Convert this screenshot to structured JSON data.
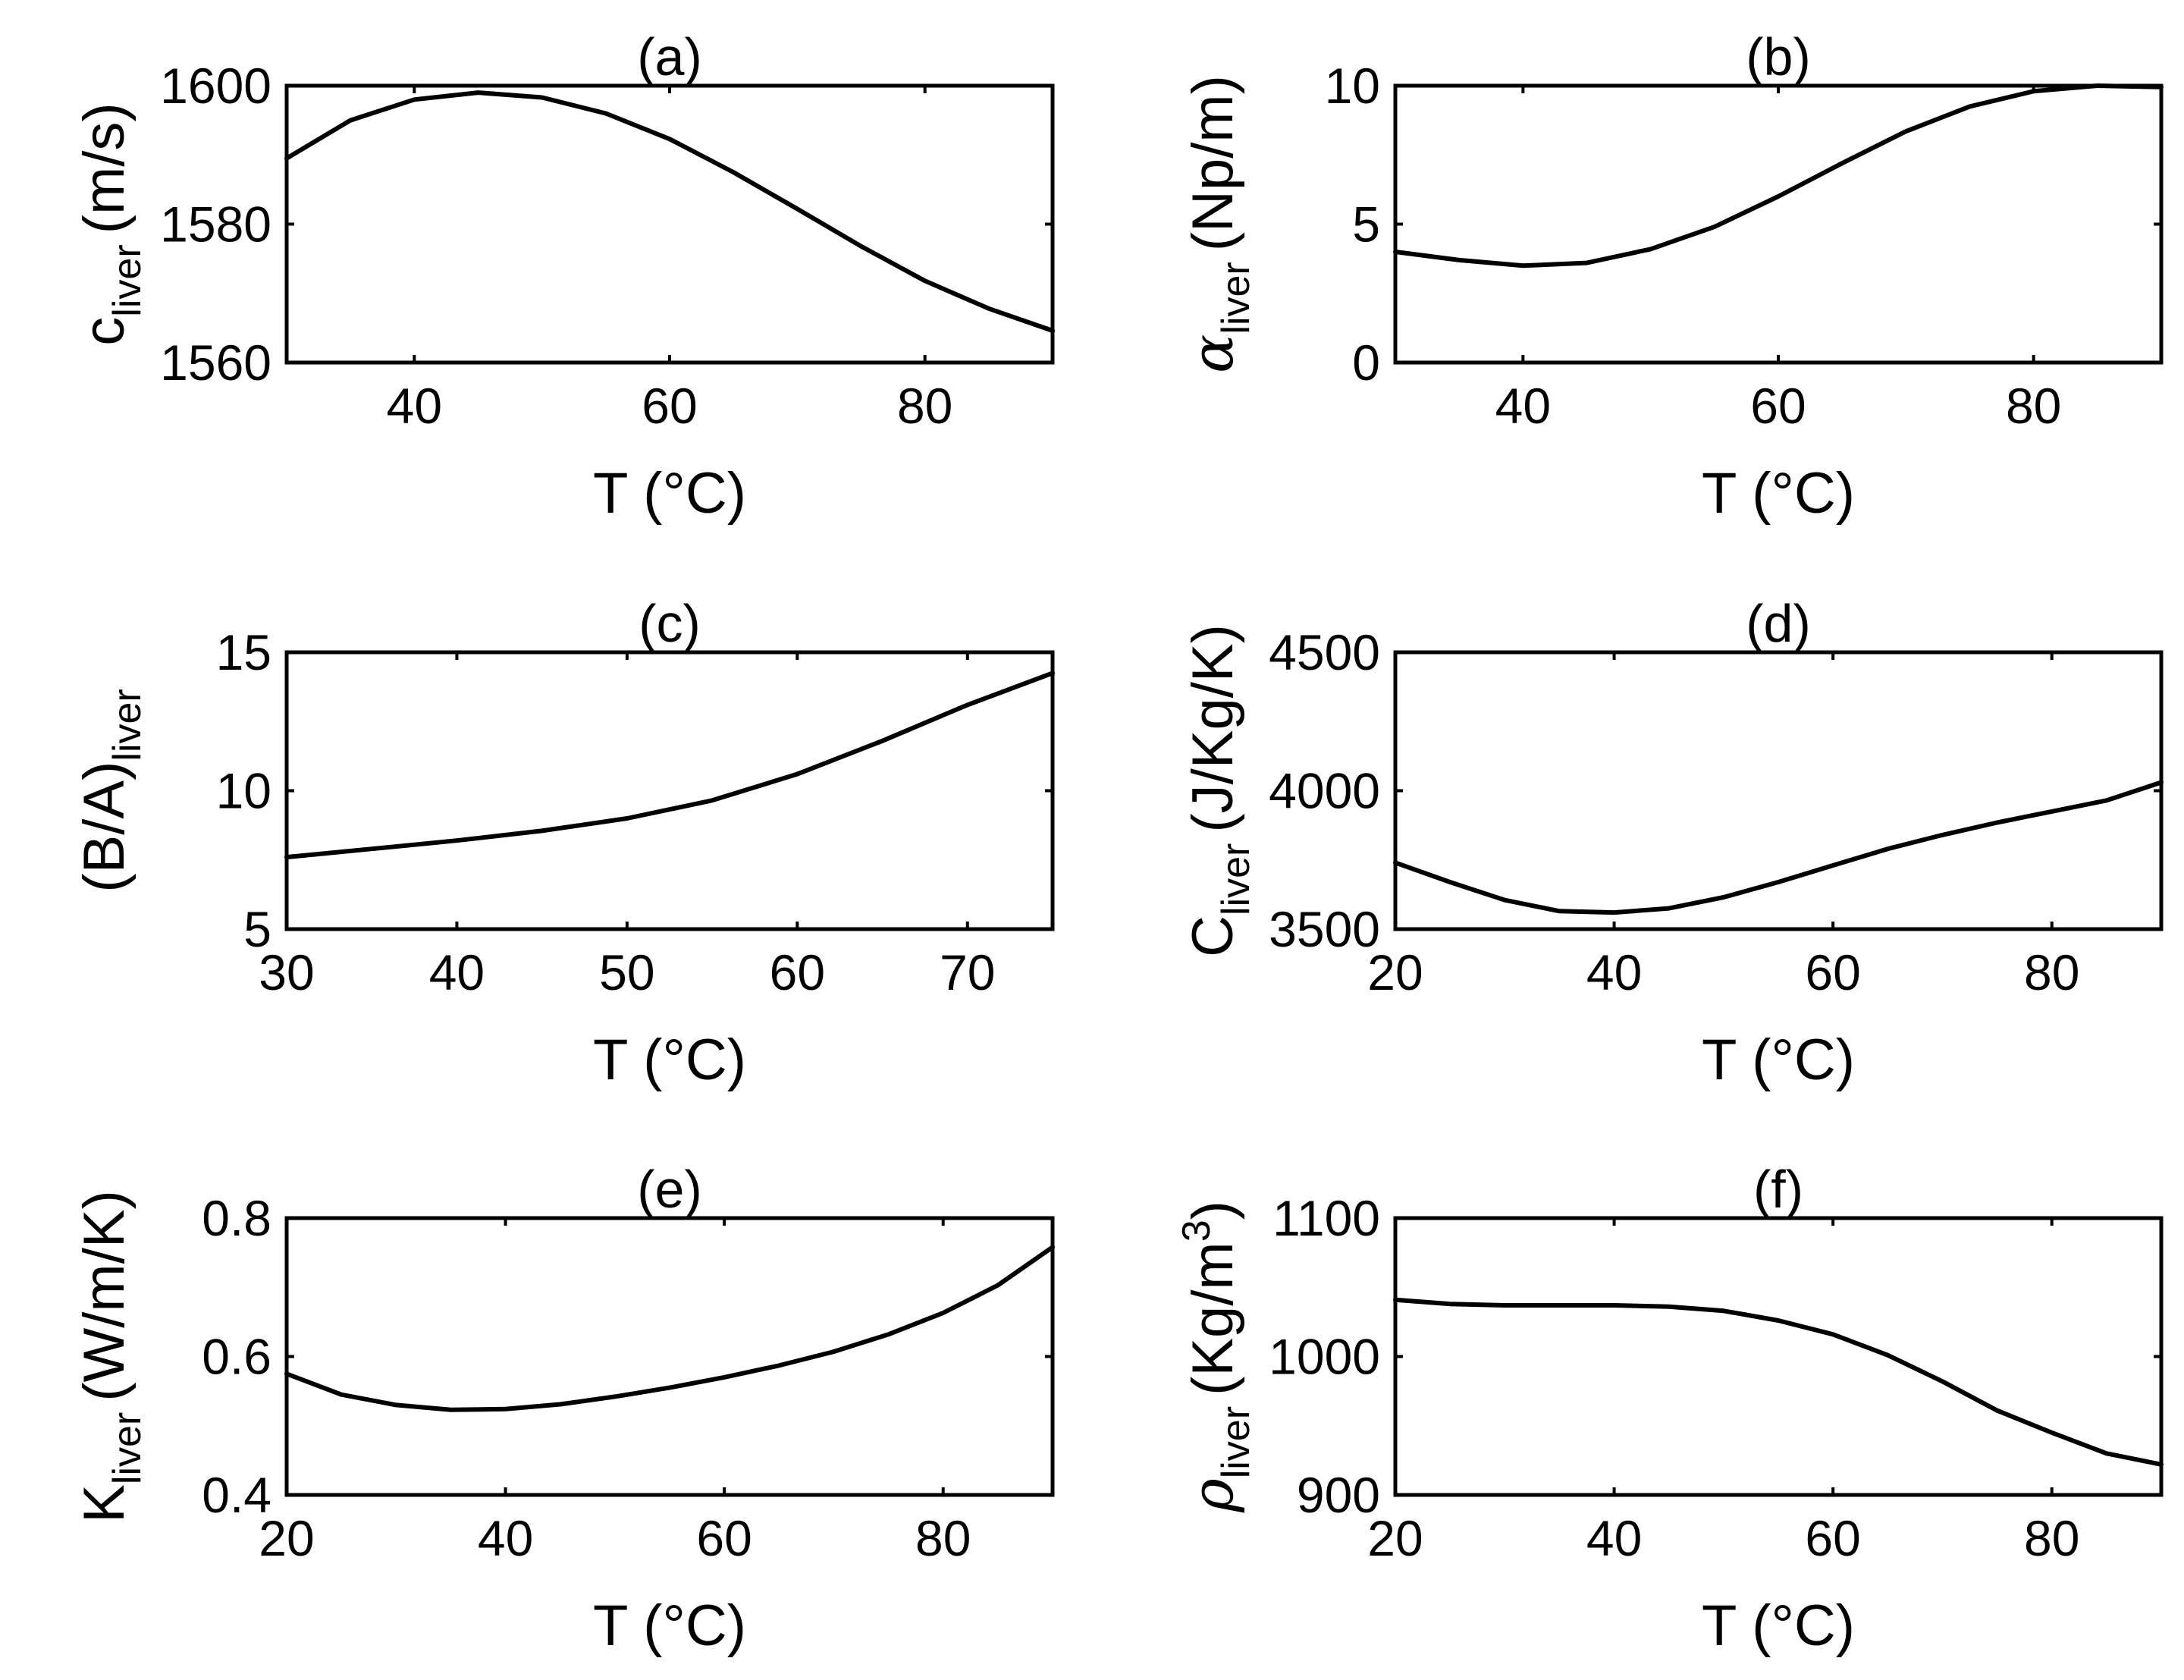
{
  "chart_data": [
    {
      "type": "line",
      "id": "a",
      "title": "(a)",
      "xlabel": "T (°C)",
      "ylabel": {
        "main": "c",
        "sub": "liver",
        "unit": "(m/s)",
        "greek": false
      },
      "xlim": [
        30,
        90
      ],
      "ylim": [
        1560,
        1600
      ],
      "xticks": [
        40,
        60,
        80
      ],
      "yticks": [
        1560,
        1580,
        1600
      ],
      "x": [
        30,
        35,
        40,
        45,
        50,
        55,
        60,
        65,
        70,
        75,
        80,
        85,
        90
      ],
      "y": [
        1589.5,
        1595,
        1598,
        1599,
        1598.3,
        1596,
        1592.3,
        1587.5,
        1582.2,
        1576.8,
        1571.8,
        1567.8,
        1564.6
      ]
    },
    {
      "type": "line",
      "id": "b",
      "title": "(b)",
      "xlabel": "T (°C)",
      "ylabel": {
        "main": "α",
        "sub": "liver",
        "unit": "(Np/m)",
        "greek": true
      },
      "xlim": [
        30,
        90
      ],
      "ylim": [
        0,
        10
      ],
      "xticks": [
        40,
        60,
        80
      ],
      "yticks": [
        0,
        5,
        10
      ],
      "x": [
        30,
        35,
        40,
        45,
        50,
        55,
        60,
        65,
        70,
        75,
        80,
        85,
        90
      ],
      "y": [
        4.0,
        3.7,
        3.5,
        3.6,
        4.1,
        4.9,
        6.0,
        7.2,
        8.35,
        9.25,
        9.8,
        10.0,
        9.95
      ]
    },
    {
      "type": "line",
      "id": "c",
      "title": "(c)",
      "xlabel": "T (°C)",
      "ylabel": {
        "main": "(B/A)",
        "sub": "liver",
        "unit": "",
        "greek": false
      },
      "xlim": [
        30,
        75
      ],
      "ylim": [
        5,
        15
      ],
      "xticks": [
        30,
        40,
        50,
        60,
        70
      ],
      "yticks": [
        5,
        10,
        15
      ],
      "x": [
        30,
        35,
        40,
        45,
        50,
        55,
        60,
        65,
        70,
        75
      ],
      "y": [
        7.6,
        7.9,
        8.2,
        8.55,
        9.0,
        9.65,
        10.6,
        11.8,
        13.1,
        14.25
      ]
    },
    {
      "type": "line",
      "id": "d",
      "title": "(d)",
      "xlabel": "T (°C)",
      "ylabel": {
        "main": "C",
        "sub": "liver",
        "unit": "(J/Kg/K)",
        "greek": false
      },
      "xlim": [
        20,
        90
      ],
      "ylim": [
        3500,
        4500
      ],
      "xticks": [
        20,
        40,
        60,
        80
      ],
      "yticks": [
        3500,
        4000,
        4500
      ],
      "x": [
        20,
        25,
        30,
        35,
        40,
        45,
        50,
        55,
        60,
        65,
        70,
        75,
        80,
        85,
        90
      ],
      "y": [
        3740,
        3670,
        3605,
        3565,
        3560,
        3575,
        3615,
        3670,
        3730,
        3790,
        3840,
        3885,
        3925,
        3965,
        4030
      ]
    },
    {
      "type": "line",
      "id": "e",
      "title": "(e)",
      "xlabel": "T (°C)",
      "ylabel": {
        "main": "K",
        "sub": "liver",
        "unit": "(W/m/K)",
        "greek": false
      },
      "xlim": [
        20,
        90
      ],
      "ylim": [
        0.4,
        0.8
      ],
      "xticks": [
        20,
        40,
        60,
        80
      ],
      "yticks": [
        0.4,
        0.6,
        0.8
      ],
      "x": [
        20,
        25,
        30,
        35,
        40,
        45,
        50,
        55,
        60,
        65,
        70,
        75,
        80,
        85,
        90
      ],
      "y": [
        0.575,
        0.545,
        0.53,
        0.523,
        0.524,
        0.531,
        0.542,
        0.555,
        0.57,
        0.587,
        0.607,
        0.632,
        0.663,
        0.703,
        0.758
      ]
    },
    {
      "type": "line",
      "id": "f",
      "title": "(f)",
      "xlabel": "T (°C)",
      "ylabel": {
        "main": "ρ",
        "sub": "liver",
        "unit": "(Kg/m",
        "unit_sup": "3",
        "unit_close": ")",
        "greek": true
      },
      "xlim": [
        20,
        90
      ],
      "ylim": [
        900,
        1100
      ],
      "xticks": [
        20,
        40,
        60,
        80
      ],
      "yticks": [
        900,
        1000,
        1100
      ],
      "x": [
        20,
        25,
        30,
        35,
        40,
        45,
        50,
        55,
        60,
        65,
        70,
        75,
        80,
        85,
        90
      ],
      "y": [
        1041,
        1038,
        1037,
        1037,
        1037,
        1036,
        1033,
        1026,
        1016,
        1001,
        982,
        961,
        945,
        930,
        922
      ]
    }
  ]
}
